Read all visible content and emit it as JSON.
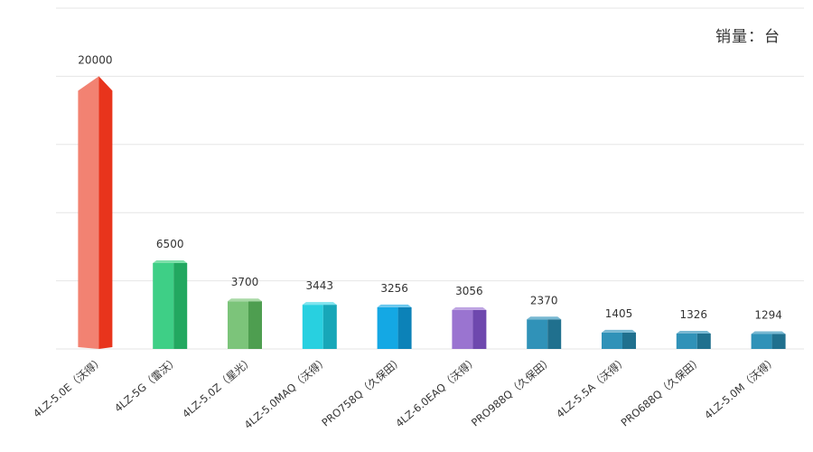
{
  "chart_data": {
    "type": "bar",
    "title": "",
    "unit_label": "销量：台",
    "xlabel": "",
    "ylabel": "",
    "ylim": [
      0,
      25000
    ],
    "grid": true,
    "categories": [
      "4LZ-5.0E（沃得）",
      "4LZ-5G（雷沃）",
      "4LZ-5.0Z（星光）",
      "4LZ-5.0MAQ（沃得）",
      "PRO758Q（久保田）",
      "4LZ-6.0EAQ（沃得）",
      "PRO988Q（久保田）",
      "4LZ-5.5A（沃得）",
      "PRO688Q（久保田）",
      "4LZ-5.0M（沃得）"
    ],
    "values": [
      20000,
      6500,
      3700,
      3443,
      3256,
      3056,
      2370,
      1405,
      1326,
      1294
    ],
    "colors": [
      {
        "front": "#f28272",
        "side": "#e8341c",
        "top": "#f7a090"
      },
      {
        "front": "#3ecf86",
        "side": "#22a860",
        "top": "#7ee0aa"
      },
      {
        "front": "#7cc47a",
        "side": "#4e9e50",
        "top": "#a8d9a6"
      },
      {
        "front": "#28d0e0",
        "side": "#17a7b8",
        "top": "#7ee4ee"
      },
      {
        "front": "#14a8e4",
        "side": "#0c82b8",
        "top": "#6cc8ee"
      },
      {
        "front": "#9a74d0",
        "side": "#6e48ae",
        "top": "#bea4e2"
      },
      {
        "front": "#3092b8",
        "side": "#20708e",
        "top": "#78b8d2"
      },
      {
        "front": "#3092b8",
        "side": "#20708e",
        "top": "#78b8d2"
      },
      {
        "front": "#3092b8",
        "side": "#20708e",
        "top": "#78b8d2"
      },
      {
        "front": "#3092b8",
        "side": "#20708e",
        "top": "#78b8d2"
      }
    ]
  }
}
